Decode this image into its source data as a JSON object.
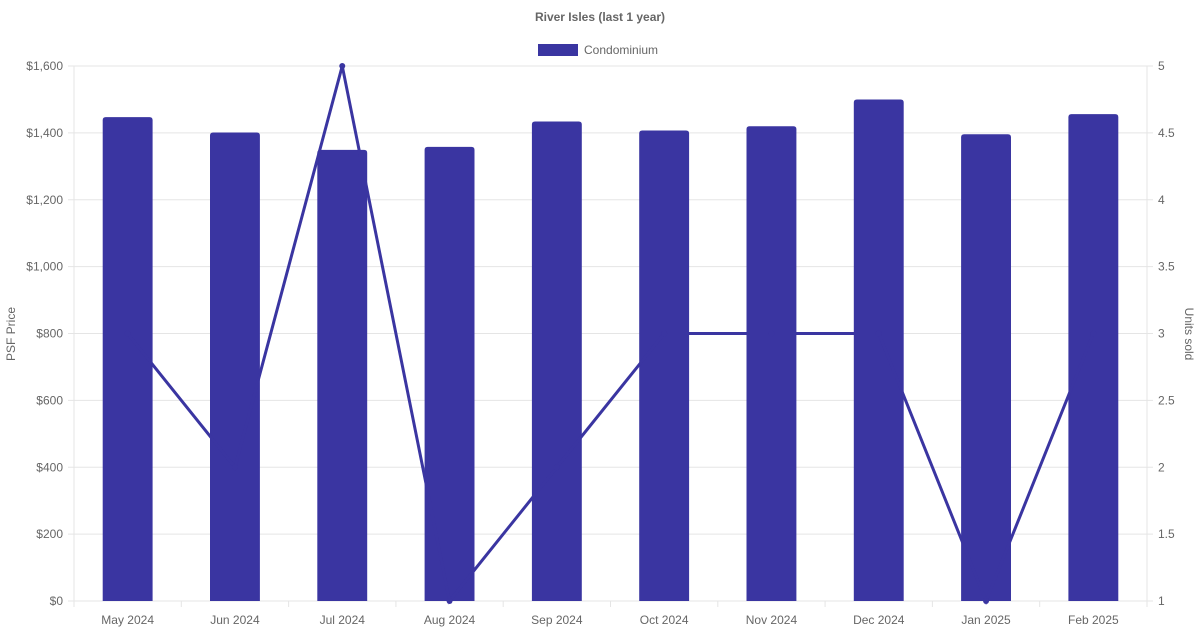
{
  "chart_data": {
    "type": "bar",
    "title": "River Isles (last 1 year)",
    "categories": [
      "May 2024",
      "Jun 2024",
      "Jul 2024",
      "Aug 2024",
      "Sep 2024",
      "Oct 2024",
      "Nov 2024",
      "Dec 2024",
      "Jan 2025",
      "Feb 2025"
    ],
    "series": [
      {
        "name": "Condominium",
        "type": "bar",
        "axis": "left",
        "color": "#3a35a1",
        "values": [
          1447,
          1401,
          1349,
          1358,
          1434,
          1407,
          1420,
          1500,
          1396,
          1456
        ]
      },
      {
        "type": "line",
        "axis": "right",
        "color": "#3a35a1",
        "values": [
          3,
          2,
          5,
          1,
          2,
          3,
          3,
          3,
          1,
          3
        ]
      }
    ],
    "left_axis": {
      "label": "PSF Price",
      "ylim": [
        0,
        1600
      ],
      "ticks": [
        "$0",
        "$200",
        "$400",
        "$600",
        "$800",
        "$1,000",
        "$1,200",
        "$1,400",
        "$1,600"
      ]
    },
    "right_axis": {
      "label": "Units sold",
      "ylim": [
        1,
        5
      ],
      "ticks": [
        "1",
        "1.5",
        "2",
        "2.5",
        "3",
        "3.5",
        "4",
        "4.5",
        "5"
      ]
    },
    "legend": {
      "position": "top",
      "entries": [
        "Condominium"
      ]
    },
    "grid": true
  }
}
